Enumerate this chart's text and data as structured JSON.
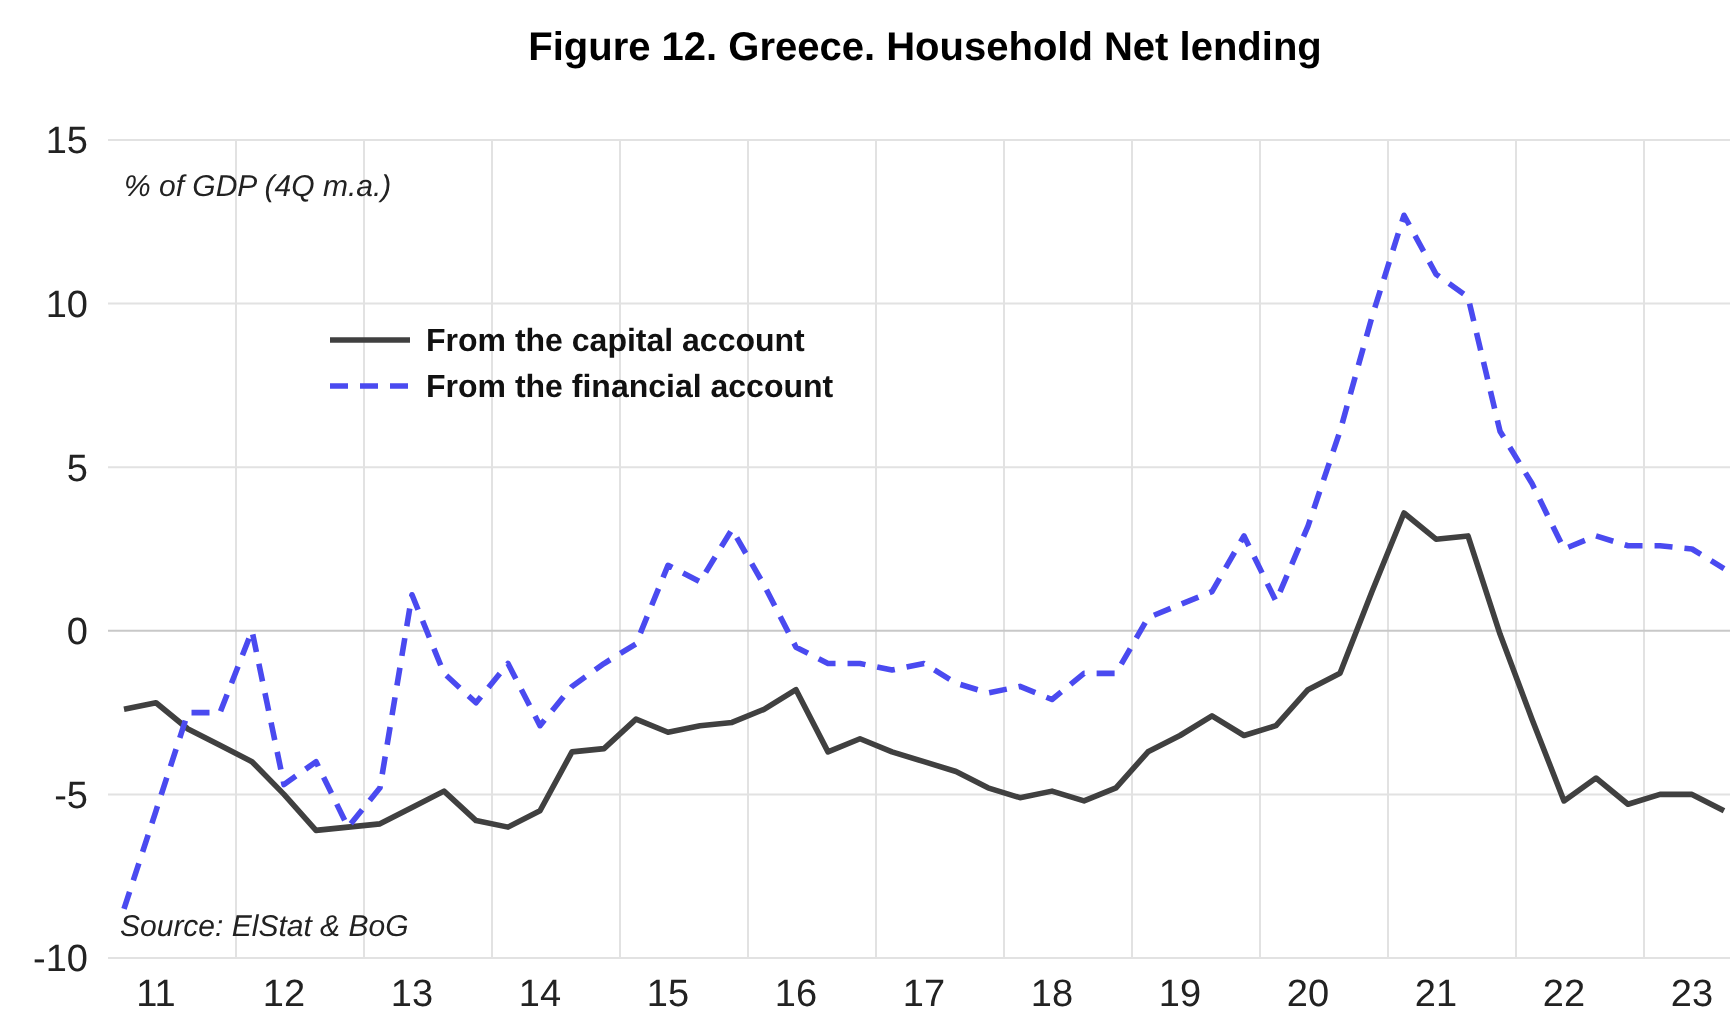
{
  "chart_data": {
    "type": "line",
    "title": "Figure 12. Greece. Household Net lending",
    "ylabel": "% of GDP (4Q m.a.)",
    "annotations": [
      "Source: ElStat & BoG"
    ],
    "categories": [
      null,
      "11",
      null,
      null,
      null,
      "12",
      null,
      null,
      null,
      "13",
      null,
      null,
      null,
      "14",
      null,
      null,
      null,
      "15",
      null,
      null,
      null,
      "16",
      null,
      null,
      null,
      "17",
      null,
      null,
      null,
      "18",
      null,
      null,
      null,
      "19",
      null,
      null,
      null,
      "20",
      null,
      null,
      null,
      "21",
      null,
      null,
      null,
      "22",
      null,
      null,
      null,
      "23",
      null
    ],
    "series": [
      {
        "name": "From the capital account",
        "color": "#404040",
        "line_style": "solid",
        "values": [
          -2.4,
          -2.2,
          -3.0,
          -3.5,
          -4.0,
          -5.0,
          -6.1,
          -6.0,
          -5.9,
          -5.4,
          -4.9,
          -5.8,
          -6.0,
          -5.5,
          -3.7,
          -3.6,
          -2.7,
          -3.1,
          -2.9,
          -2.8,
          -2.4,
          -1.8,
          -3.7,
          -3.3,
          -3.7,
          -4.0,
          -4.3,
          -4.8,
          -5.1,
          -4.9,
          -5.2,
          -4.8,
          -3.7,
          -3.2,
          -2.6,
          -3.2,
          -2.9,
          -1.8,
          -1.3,
          1.2,
          3.6,
          2.8,
          2.9,
          -0.1,
          -2.7,
          -5.2,
          -4.5,
          -5.3,
          -5.0,
          -5.0,
          -5.5
        ]
      },
      {
        "name": "From the financial account",
        "color": "#4a4af0",
        "line_style": "dashed",
        "values": [
          -8.5,
          -5.5,
          -2.5,
          -2.5,
          0.0,
          -4.7,
          -4.0,
          -6.0,
          -4.8,
          1.1,
          -1.3,
          -2.2,
          -1.0,
          -2.9,
          -1.7,
          -1.0,
          -0.4,
          2.0,
          1.5,
          3.1,
          1.4,
          -0.5,
          -1.0,
          -1.0,
          -1.2,
          -1.0,
          -1.6,
          -1.9,
          -1.7,
          -2.1,
          -1.3,
          -1.3,
          0.4,
          0.8,
          1.2,
          2.9,
          0.9,
          3.2,
          6.1,
          9.6,
          12.7,
          10.9,
          10.2,
          6.1,
          4.5,
          2.5,
          2.9,
          2.6,
          2.6,
          2.5,
          1.9
        ]
      }
    ],
    "ylim": [
      -10,
      15
    ],
    "yticks": [
      -10,
      -5,
      0,
      5,
      10,
      15
    ],
    "grid": true,
    "legend": "top left",
    "marker": "none"
  }
}
